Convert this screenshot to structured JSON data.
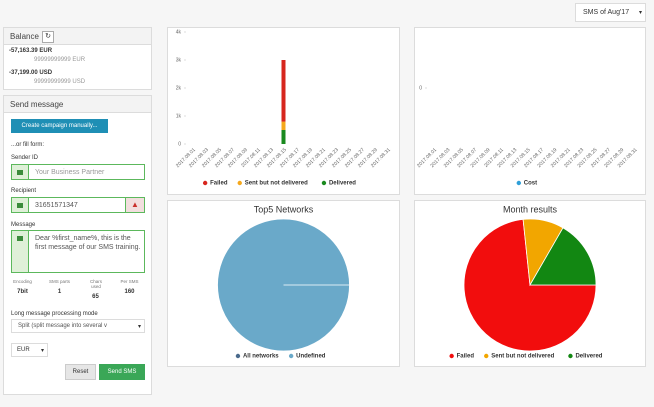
{
  "header": {
    "period_select": "SMS of Aug'17"
  },
  "balance": {
    "title": "Balance",
    "accounts": [
      {
        "amount": "-57,163.39 EUR",
        "limit": "99999999999 EUR"
      },
      {
        "amount": "-37,199.00 USD",
        "limit": "99999999999 USD"
      }
    ]
  },
  "send_message": {
    "title": "Send message",
    "campaign_button": "Create campaign manually...",
    "or_fill": "...or fill form:",
    "sender_label": "Sender ID",
    "sender_value": "Your Business Partner",
    "recipient_label": "Recipient",
    "recipient_value": "31651571347",
    "message_label": "Message",
    "message_value": "Dear %first_name%, this is the first message of our SMS training.",
    "stats": [
      {
        "label": "Encoding",
        "value": "7bit"
      },
      {
        "label": "SMS parts",
        "value": 1
      },
      {
        "label": "Chars used",
        "value": 65
      },
      {
        "label": "Per SMS",
        "value": 160
      }
    ],
    "mode_label": "Long message processing mode",
    "mode_value": "Split (split message into several v",
    "currency": "EUR",
    "reset": "Reset",
    "send": "Send SMS"
  },
  "chart_data": [
    {
      "type": "bar",
      "stacked": true,
      "categories": [
        "2017.08.01",
        "2017.08.03",
        "2017.08.05",
        "2017.08.07",
        "2017.08.09",
        "2017.08.11",
        "2017.08.13",
        "2017.08.15",
        "2017.08.17",
        "2017.08.19",
        "2017.08.21",
        "2017.08.23",
        "2017.08.25",
        "2017.08.27",
        "2017.08.29",
        "2017.08.31"
      ],
      "series": [
        {
          "name": "Failed",
          "color": "#d7261e",
          "values": [
            0,
            0,
            0,
            0,
            0,
            0,
            0,
            2200,
            0,
            0,
            0,
            0,
            0,
            0,
            0,
            0
          ]
        },
        {
          "name": "Sent but not delivered",
          "color": "#f5a81c",
          "values": [
            0,
            0,
            0,
            0,
            0,
            0,
            0,
            300,
            0,
            0,
            0,
            0,
            0,
            0,
            0,
            0
          ]
        },
        {
          "name": "Delivered",
          "color": "#1a8a1f",
          "values": [
            0,
            0,
            0,
            0,
            0,
            0,
            0,
            500,
            0,
            0,
            0,
            0,
            0,
            0,
            0,
            0
          ]
        }
      ],
      "ylim": [
        0,
        4000
      ],
      "yticks": [
        0,
        {
          "value": 1000,
          "label": "1k"
        },
        {
          "value": 2000,
          "label": "2k"
        },
        {
          "value": 3000,
          "label": "3k"
        },
        {
          "value": 4000,
          "label": "4k"
        }
      ]
    },
    {
      "type": "line",
      "categories": [
        "2017.08.01",
        "2017.08.03",
        "2017.08.05",
        "2017.08.07",
        "2017.08.09",
        "2017.08.11",
        "2017.08.13",
        "2017.08.15",
        "2017.08.17",
        "2017.08.19",
        "2017.08.21",
        "2017.08.23",
        "2017.08.25",
        "2017.08.27",
        "2017.08.29",
        "2017.08.31"
      ],
      "series": [
        {
          "name": "Cost",
          "color": "#2f9fd8",
          "values": [
            null,
            null,
            null,
            null,
            null,
            null,
            null,
            null,
            null,
            null,
            null,
            null,
            null,
            null,
            null,
            null
          ]
        }
      ],
      "ylim": [
        -1,
        1
      ],
      "yticks": [
        0
      ]
    },
    {
      "type": "pie",
      "title": "Top5 Networks",
      "categories": [
        "All networks",
        "Undefined"
      ],
      "values": [
        0,
        100
      ],
      "colors": [
        "#4a6a8c",
        "#6aa9c9"
      ]
    },
    {
      "type": "pie",
      "title": "Month results",
      "categories": [
        "Failed",
        "Sent but not delivered",
        "Delivered"
      ],
      "values": [
        2200,
        300,
        500
      ],
      "colors": [
        "#f20d0d",
        "#f2a600",
        "#128712"
      ]
    }
  ]
}
